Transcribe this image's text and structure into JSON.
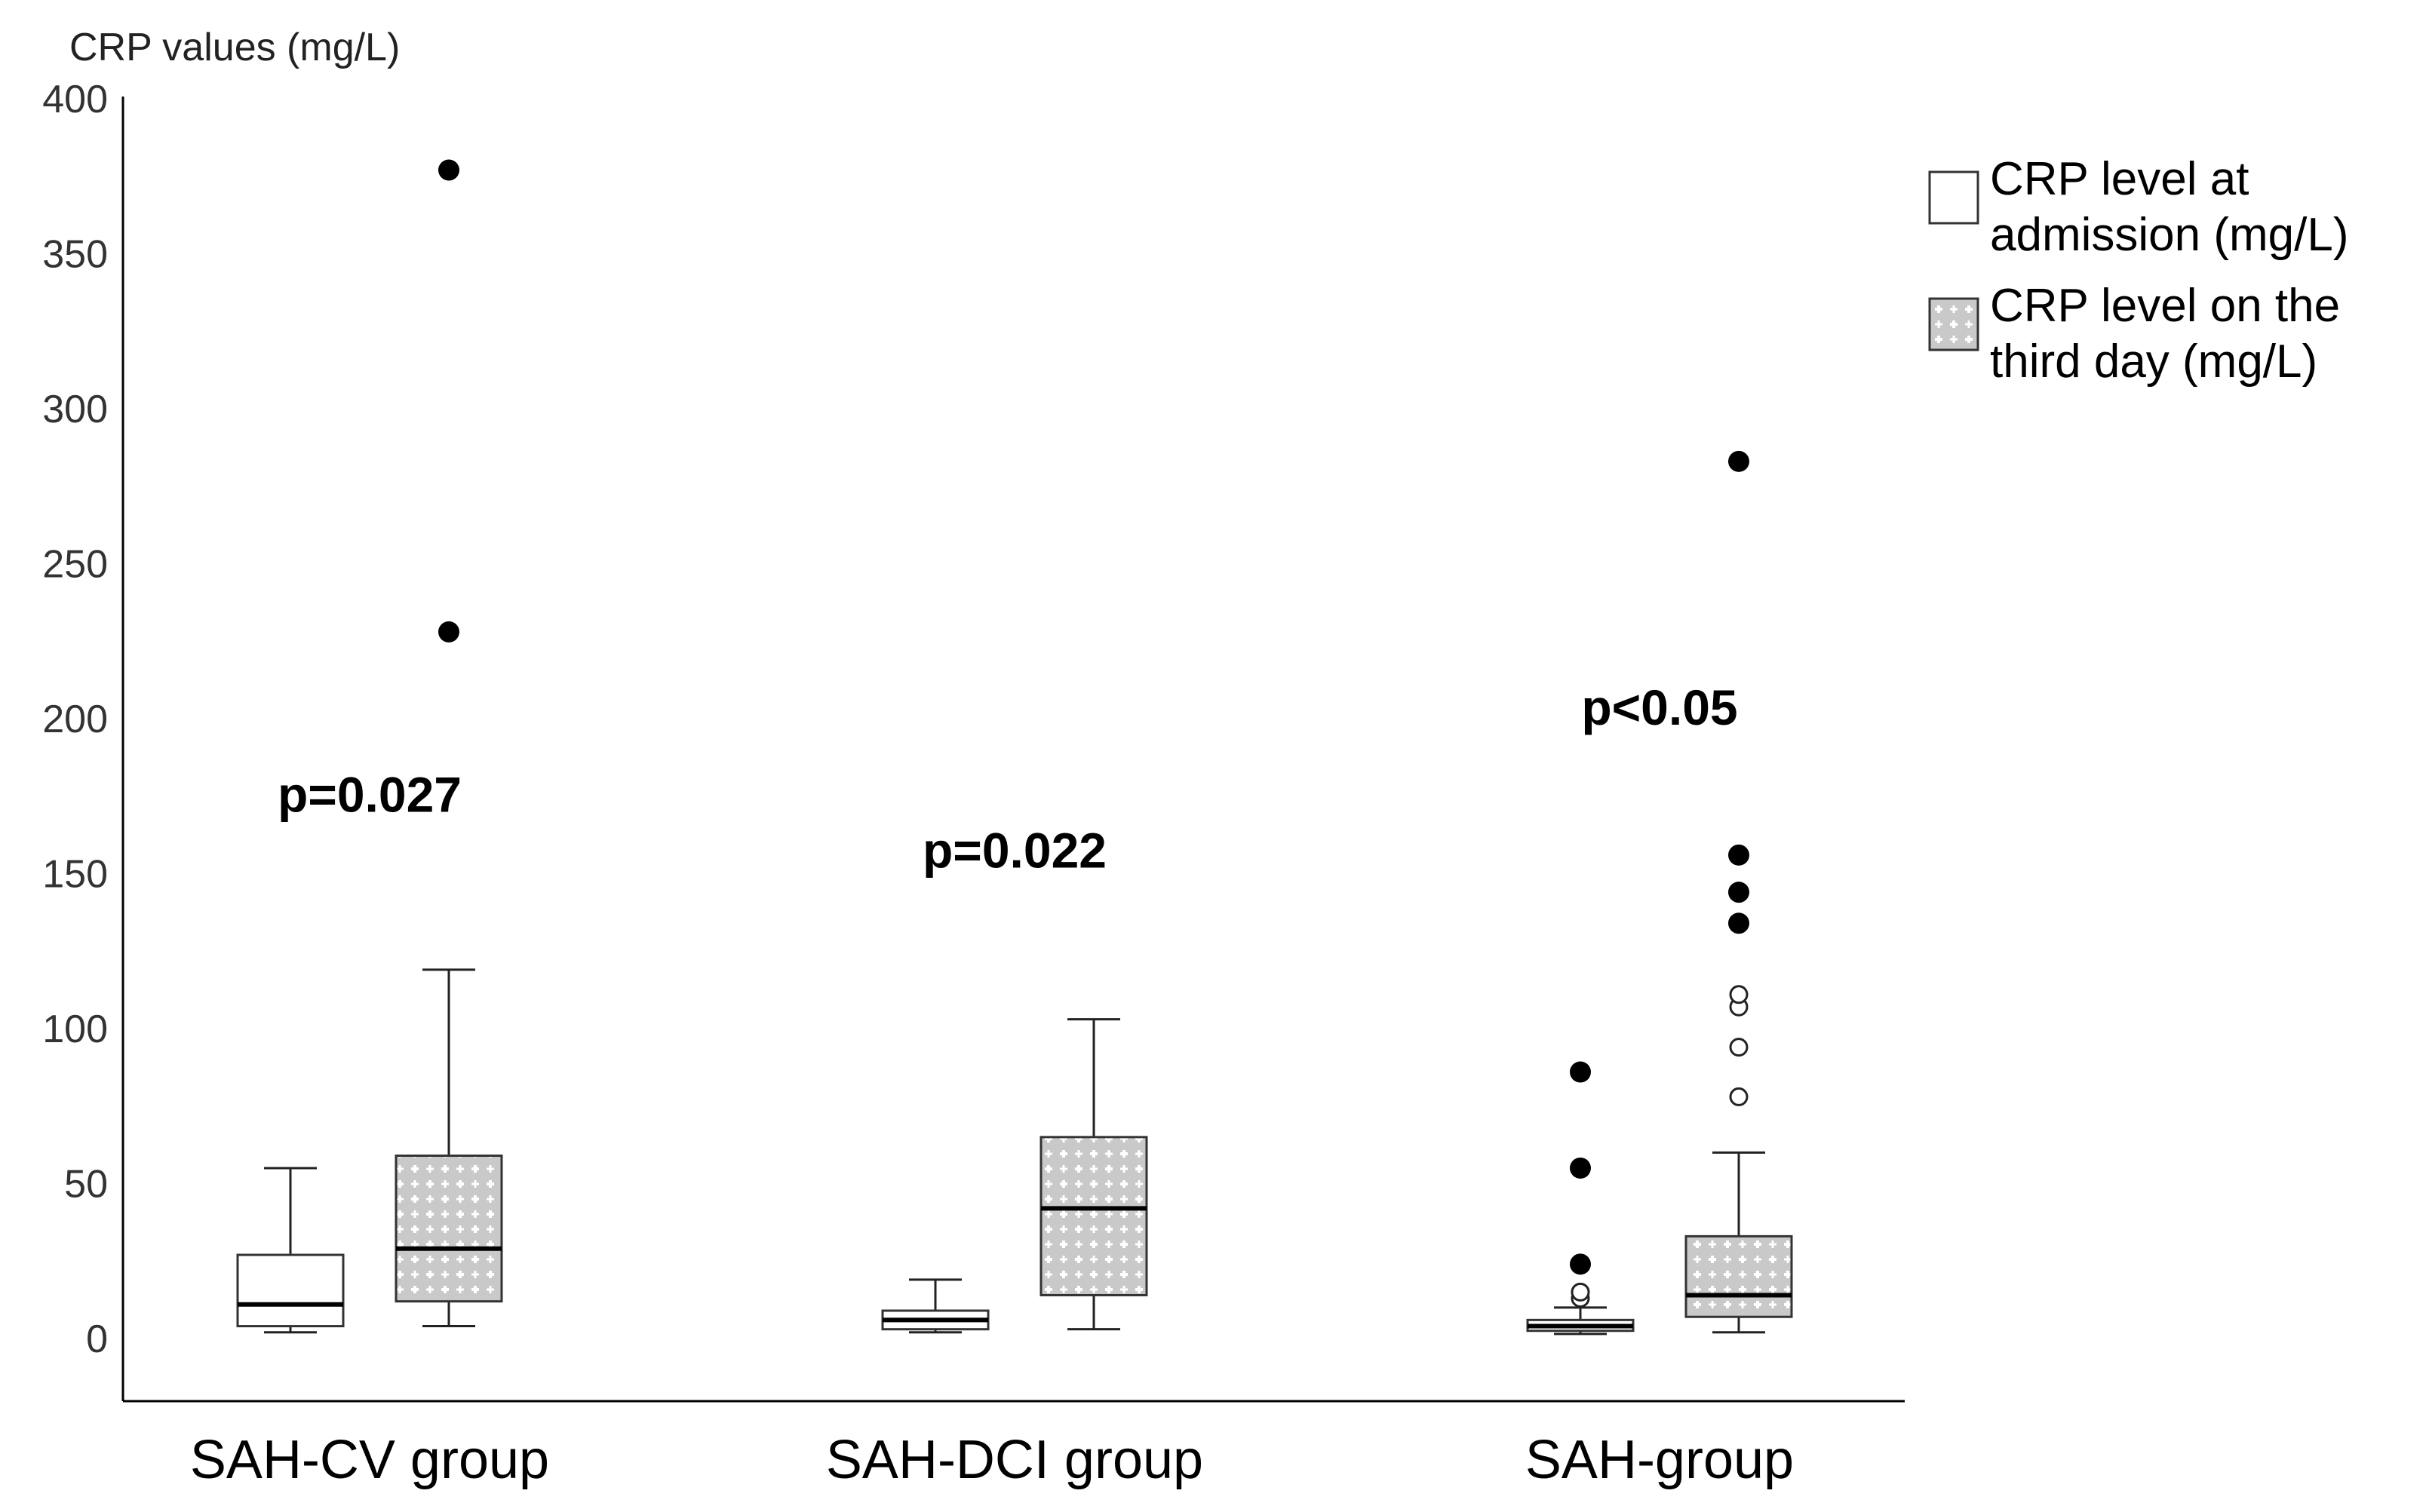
{
  "chart_data": {
    "type": "boxplot",
    "ylabel": "CRP values (mg/L)",
    "ylim": [
      -20,
      415
    ],
    "yticks": [
      0,
      50,
      100,
      150,
      200,
      250,
      300,
      350,
      400
    ],
    "grid": false,
    "legend_position": "top-right",
    "categories": [
      "SAH-CV group",
      "SAH-DCI group",
      "SAH-group"
    ],
    "series": [
      {
        "name": "CRP level at admission (mg/L)",
        "pattern": "none",
        "boxes": [
          {
            "category": "SAH-CV group",
            "min": 2,
            "q1": 4,
            "median": 11,
            "q3": 27,
            "max": 55,
            "outliers": [],
            "extremes": []
          },
          {
            "category": "SAH-DCI group",
            "min": 2,
            "q1": 3,
            "median": 6,
            "q3": 9,
            "max": 19,
            "outliers": [],
            "extremes": []
          },
          {
            "category": "SAH-group",
            "min": 1.5,
            "q1": 2.5,
            "median": 4,
            "q3": 6,
            "max": 10,
            "outliers": [
              13,
              15
            ],
            "extremes": [
              24,
              55,
              86
            ]
          }
        ]
      },
      {
        "name": "CRP level on the third day (mg/L)",
        "pattern": "cross-hatch",
        "boxes": [
          {
            "category": "SAH-CV group",
            "min": 4,
            "q1": 12,
            "median": 29,
            "q3": 59,
            "max": 119,
            "outliers": [],
            "extremes": [
              228,
              377
            ]
          },
          {
            "category": "SAH-DCI group",
            "min": 3,
            "q1": 14,
            "median": 42,
            "q3": 65,
            "max": 103,
            "outliers": [],
            "extremes": []
          },
          {
            "category": "SAH-group",
            "min": 2,
            "q1": 7,
            "median": 14,
            "q3": 33,
            "max": 60,
            "outliers": [
              78,
              94,
              107,
              111
            ],
            "extremes": [
              134,
              144,
              156,
              283
            ]
          }
        ]
      }
    ],
    "annotations": [
      {
        "category": "SAH-CV group",
        "text": "p=0.027",
        "y": 170
      },
      {
        "category": "SAH-DCI group",
        "text": "p=0.022",
        "y": 152
      },
      {
        "category": "SAH-group",
        "text": "p<0.05",
        "y": 198
      }
    ]
  },
  "legend": {
    "items": [
      {
        "line1": "CRP level at",
        "line2": "admission (mg/L)"
      },
      {
        "line1": "CRP level on the",
        "line2": "third day (mg/L)"
      }
    ]
  }
}
